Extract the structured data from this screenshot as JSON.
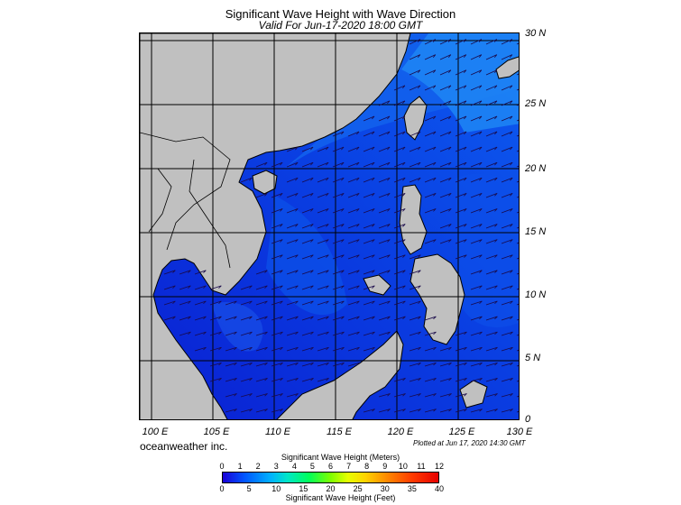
{
  "title": "Significant Wave Height with Wave Direction",
  "subtitle": "Valid For Jun-17-2020 18:00 GMT",
  "lat_labels": [
    "30 N",
    "25 N",
    "20 N",
    "15 N",
    "10 N",
    "5 N",
    "0"
  ],
  "lon_labels": [
    "100 E",
    "105 E",
    "110 E",
    "115 E",
    "120 E",
    "125 E",
    "130 E"
  ],
  "credit": "oceanweather inc.",
  "plotted": "Plotted at Jun 17, 2020 14:30 GMT",
  "colorbar": {
    "title_meters": "Significant Wave Height (Meters)",
    "title_feet": "Significant Wave Height (Feet)",
    "meter_ticks": [
      "0",
      "1",
      "2",
      "3",
      "4",
      "5",
      "6",
      "7",
      "8",
      "9",
      "10",
      "11",
      "12"
    ],
    "feet_ticks": [
      "0",
      "5",
      "10",
      "15",
      "20",
      "25",
      "30",
      "35",
      "40"
    ]
  },
  "colors": {
    "land": "#c0c0c0",
    "sea_low": "#0a2ad8",
    "sea_mid": "#0b4fe6",
    "sea_high": "#1f86f4",
    "grid": "#000000"
  },
  "map_extent": {
    "lon": [
      99,
      130
    ],
    "lat": [
      0,
      30
    ]
  }
}
